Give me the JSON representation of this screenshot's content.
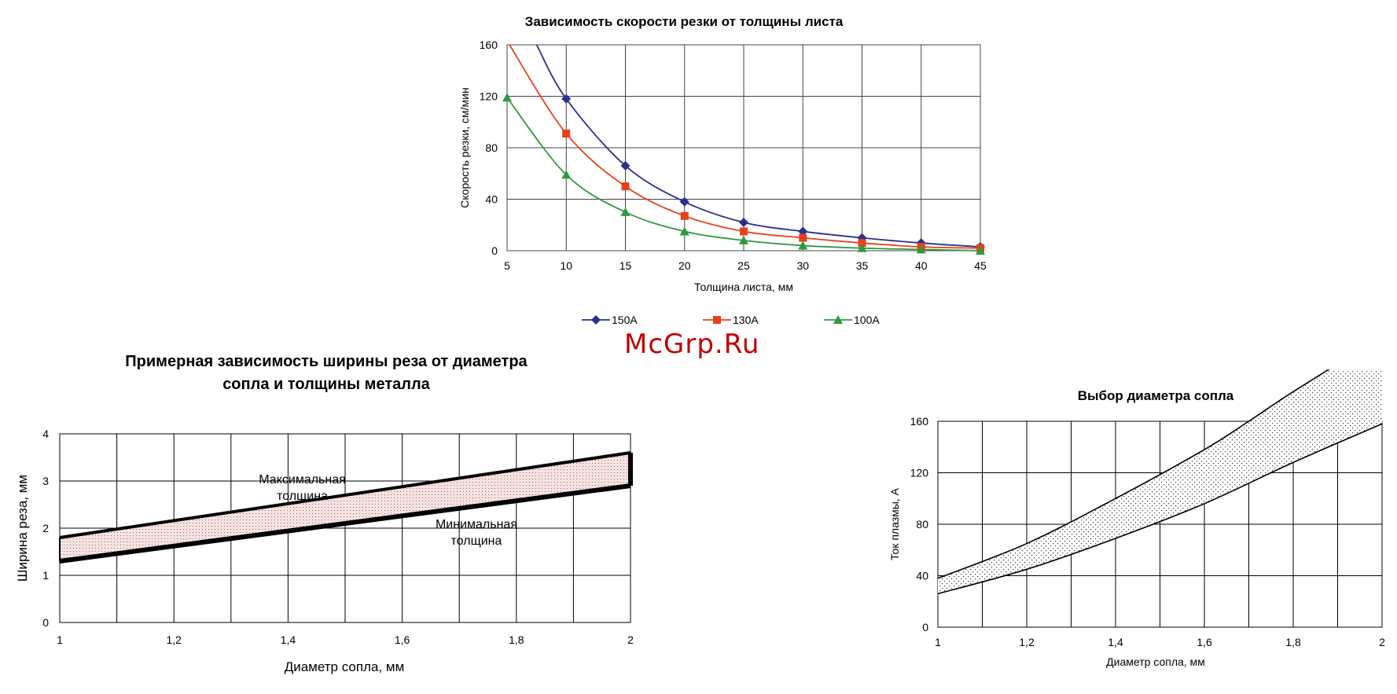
{
  "watermark": "McGrp.Ru",
  "chart_data": [
    {
      "type": "line",
      "title": "Зависимость скорости резки от толщины листа",
      "xlabel": "Толщина листа, мм",
      "ylabel": "Скорость резки, см/мин",
      "xlim": [
        5,
        45
      ],
      "ylim": [
        0,
        160
      ],
      "x_ticks": [
        5,
        10,
        15,
        20,
        25,
        30,
        35,
        40,
        45
      ],
      "y_ticks": [
        0,
        40,
        80,
        120,
        160
      ],
      "grid": true,
      "legend_position": "bottom",
      "series": [
        {
          "name": "150A",
          "color": "#2b2f8f",
          "marker": "diamond",
          "x": [
            10,
            15,
            20,
            25,
            30,
            35,
            40,
            45
          ],
          "y": [
            118,
            66,
            38,
            22,
            15,
            10,
            6,
            3
          ],
          "curve_x": [
            7.5,
            10,
            15,
            20,
            25,
            30,
            35,
            40,
            45
          ],
          "curve_y": [
            160,
            118,
            66,
            38,
            22,
            15,
            10,
            6,
            3
          ]
        },
        {
          "name": "130A",
          "color": "#e8401c",
          "marker": "square",
          "x": [
            10,
            15,
            20,
            25,
            30,
            35,
            40,
            45
          ],
          "y": [
            91,
            50,
            27,
            15,
            10,
            6,
            3,
            2
          ],
          "curve_x": [
            5.2,
            10,
            15,
            20,
            25,
            30,
            35,
            40,
            45
          ],
          "curve_y": [
            160,
            91,
            50,
            27,
            15,
            10,
            6,
            3,
            2
          ]
        },
        {
          "name": "100A",
          "color": "#2e9a3e",
          "marker": "triangle",
          "x": [
            5,
            10,
            15,
            20,
            25,
            30,
            35,
            40,
            45
          ],
          "y": [
            119,
            59,
            30,
            15,
            8,
            4,
            2,
            1,
            0
          ]
        }
      ]
    },
    {
      "type": "area",
      "title_lines": [
        "Примерная зависимость ширины реза от диаметра",
        "сопла и толщины металла"
      ],
      "xlabel": "Диаметр сопла, мм",
      "ylabel": "Ширина реза, мм",
      "xlim": [
        1,
        2
      ],
      "ylim": [
        0,
        4
      ],
      "x_ticks": [
        "1",
        "1,2",
        "1,4",
        "1,6",
        "1,8",
        "2"
      ],
      "y_ticks": [
        "0",
        "1",
        "2",
        "3",
        "4"
      ],
      "grid": true,
      "band": {
        "x": [
          1,
          2
        ],
        "upper": [
          1.8,
          3.6
        ],
        "lower": [
          1.3,
          2.9
        ]
      },
      "annotations": [
        {
          "lines": [
            "Максимальная",
            "толщина"
          ],
          "x": 1.425,
          "y": 2.95
        },
        {
          "lines": [
            "Минимальная",
            "толщина"
          ],
          "x": 1.73,
          "y": 2.0
        }
      ]
    },
    {
      "type": "area",
      "title": "Выбор диаметра сопла",
      "xlabel": "Диаметр сопла, мм",
      "ylabel": "Ток плазмы, А",
      "xlim": [
        1,
        2
      ],
      "ylim": [
        0,
        160
      ],
      "x_ticks": [
        "1",
        "1,2",
        "1,4",
        "1,6",
        "1,8",
        "2"
      ],
      "y_ticks": [
        "0",
        "40",
        "80",
        "120",
        "160"
      ],
      "grid": true,
      "band": {
        "upper_x": [
          1,
          1.2,
          1.4,
          1.6,
          1.7,
          1.8,
          2
        ],
        "upper_y": [
          38,
          65,
          100,
          138,
          160,
          183,
          226
        ],
        "lower_x": [
          1,
          1.2,
          1.4,
          1.6,
          1.8,
          2
        ],
        "lower_y": [
          26,
          45,
          69,
          96,
          128,
          158
        ]
      }
    }
  ]
}
